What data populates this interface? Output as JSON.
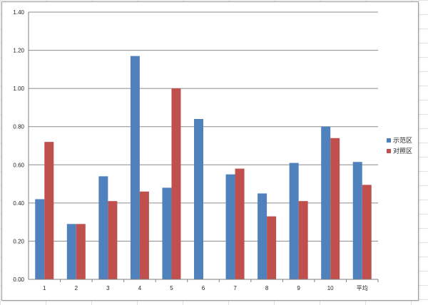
{
  "chart_data": {
    "type": "bar",
    "categories": [
      "1",
      "2",
      "3",
      "4",
      "5",
      "6",
      "7",
      "8",
      "9",
      "10",
      "平均"
    ],
    "series": [
      {
        "name": "示范区",
        "color": "#4f81bd",
        "values": [
          0.42,
          0.29,
          0.54,
          1.17,
          0.48,
          0.84,
          0.55,
          0.45,
          0.61,
          0.8,
          0.615
        ]
      },
      {
        "name": "对照区",
        "color": "#c0504d",
        "values": [
          0.72,
          0.29,
          0.41,
          0.46,
          1.0,
          null,
          0.58,
          0.33,
          0.41,
          0.74,
          0.495
        ]
      }
    ],
    "yticks": [
      "0.00",
      "0.20",
      "0.40",
      "0.60",
      "0.80",
      "1.00",
      "1.20",
      "1.40"
    ],
    "ylim": [
      0,
      1.4
    ],
    "grid": true,
    "legend": "right",
    "title": "",
    "xlabel": "",
    "ylabel": ""
  }
}
